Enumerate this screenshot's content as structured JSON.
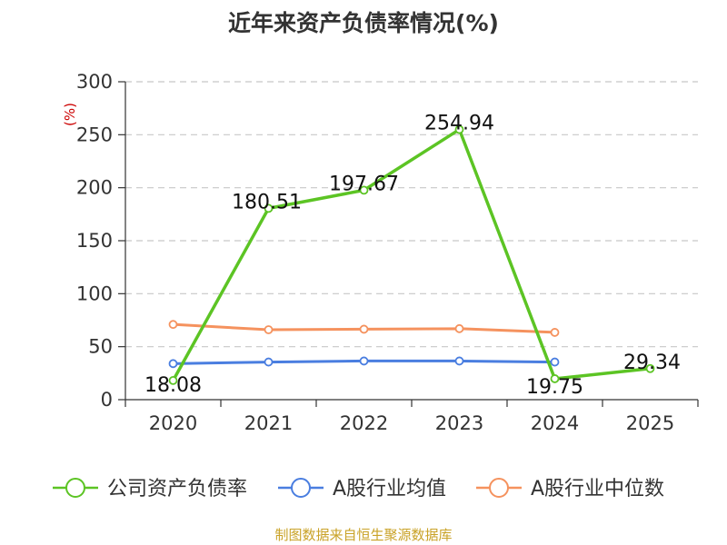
{
  "chart_data": {
    "type": "line",
    "title": "近年来资产负债率情况(%)",
    "unit_label": "(%)",
    "categories": [
      "2020",
      "2021",
      "2022",
      "2023",
      "2024",
      "2025"
    ],
    "y_ticks": [
      "0",
      "50",
      "100",
      "150",
      "200",
      "250",
      "300"
    ],
    "ylim": [
      0,
      300
    ],
    "grid": true,
    "legend_position": "bottom",
    "series": [
      {
        "name": "公司资产负债率",
        "color": "#5cc424",
        "values": [
          18.08,
          180.51,
          197.67,
          254.94,
          19.75,
          29.34
        ],
        "labels": [
          "18.08",
          "180.51",
          "197.67",
          "254.94",
          "19.75",
          "29.34"
        ]
      },
      {
        "name": "A股行业均值",
        "color": "#4a7ee0",
        "values": [
          34,
          35.5,
          36.5,
          36.5,
          35.5,
          null
        ]
      },
      {
        "name": "A股行业中位数",
        "color": "#f5925e",
        "values": [
          71,
          66,
          66.5,
          67,
          63.5,
          null
        ]
      }
    ]
  },
  "footer": {
    "source": "制图数据来自恒生聚源数据库"
  }
}
